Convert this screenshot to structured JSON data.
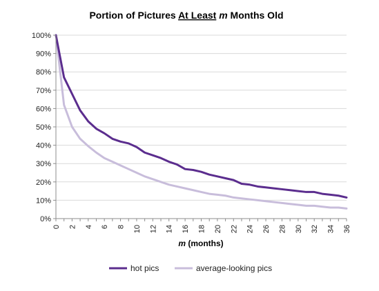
{
  "chart_data": {
    "type": "line",
    "title_parts": [
      {
        "text": "Portion of Pictures ",
        "style": "normal"
      },
      {
        "text": "At Least",
        "style": "underline"
      },
      {
        "text": " ",
        "style": "normal"
      },
      {
        "text": "m",
        "style": "italic"
      },
      {
        "text": " Months Old",
        "style": "normal"
      }
    ],
    "xlabel_parts": [
      {
        "text": "m",
        "style": "italic"
      },
      {
        "text": " (months)",
        "style": "normal"
      }
    ],
    "ylabel": "",
    "xlim": [
      0,
      36
    ],
    "ylim": [
      0,
      100
    ],
    "y_tick_labels": [
      "0%",
      "10%",
      "20%",
      "30%",
      "40%",
      "50%",
      "60%",
      "70%",
      "80%",
      "90%",
      "100%"
    ],
    "x_tick_labels": [
      "0",
      "2",
      "4",
      "6",
      "8",
      "10",
      "12",
      "14",
      "16",
      "18",
      "20",
      "22",
      "24",
      "26",
      "28",
      "30",
      "32",
      "34",
      "36"
    ],
    "grid": "horizontal",
    "legend_position": "bottom",
    "x": [
      0,
      1,
      2,
      3,
      4,
      5,
      6,
      7,
      8,
      9,
      10,
      11,
      12,
      13,
      14,
      15,
      16,
      17,
      18,
      19,
      20,
      21,
      22,
      23,
      24,
      25,
      26,
      27,
      28,
      29,
      30,
      31,
      32,
      33,
      34,
      35,
      36
    ],
    "series": [
      {
        "name": "hot pics",
        "color": "#5b2d8e",
        "values": [
          100,
          77,
          68,
          59,
          53,
          49,
          46.5,
          43.5,
          42,
          41,
          39,
          36,
          34.5,
          33,
          31,
          29.5,
          27,
          26.5,
          25.5,
          24,
          23,
          22,
          21,
          19,
          18.5,
          17.5,
          17,
          16.5,
          16,
          15.5,
          15,
          14.5,
          14.5,
          13.5,
          13,
          12.5,
          11.5
        ]
      },
      {
        "name": "average-looking pics",
        "color": "#c8bddb",
        "values": [
          100,
          62,
          50,
          43.5,
          39.5,
          36,
          33,
          31,
          29,
          27,
          25,
          23,
          21.5,
          20,
          18.5,
          17.5,
          16.5,
          15.5,
          14.5,
          13.5,
          13,
          12.5,
          11.5,
          11,
          10.5,
          10,
          9.5,
          9,
          8.5,
          8,
          7.5,
          7,
          7,
          6.5,
          6,
          6,
          5.5
        ]
      }
    ]
  }
}
